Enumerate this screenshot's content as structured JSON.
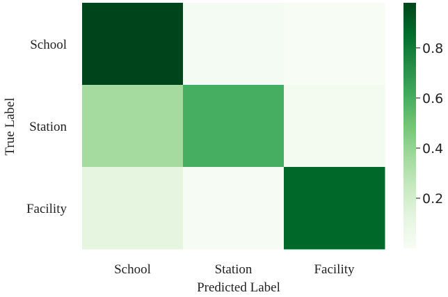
{
  "chart_data": {
    "type": "heatmap",
    "title": "",
    "xlabel": "Predicted Label",
    "ylabel": "True Label",
    "x_categories": [
      "School",
      "Station",
      "Facility"
    ],
    "y_categories": [
      "School",
      "Station",
      "Facility"
    ],
    "values": [
      [
        0.98,
        0.02,
        0.0
      ],
      [
        0.35,
        0.6,
        0.03
      ],
      [
        0.12,
        0.01,
        0.87
      ]
    ],
    "colorbar": {
      "range": [
        0,
        0.98
      ],
      "ticks": [
        0.2,
        0.4,
        0.6,
        0.8
      ],
      "tick_labels": [
        "0.2",
        "0.4",
        "0.6",
        "0.8"
      ]
    },
    "colormap": "Greens",
    "colormap_stops": [
      "#f7fcf5",
      "#e5f5e0",
      "#c7e9c0",
      "#a1d99b",
      "#74c476",
      "#41ab5d",
      "#238b45",
      "#006d2c",
      "#00441b"
    ]
  }
}
